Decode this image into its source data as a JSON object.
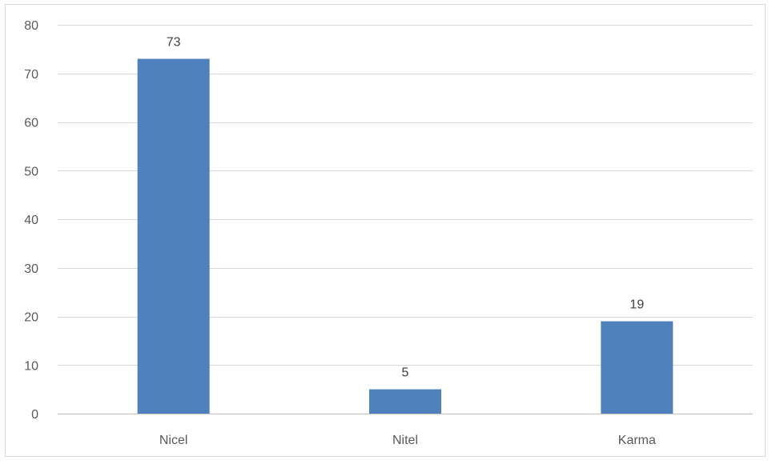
{
  "chart_data": {
    "type": "bar",
    "categories": [
      "Nicel",
      "Nitel",
      "Karma"
    ],
    "values": [
      73,
      5,
      19
    ],
    "data_labels": [
      "73",
      "5",
      "19"
    ],
    "title": "",
    "xlabel": "",
    "ylabel": "",
    "ylim": [
      0,
      80
    ],
    "yticks": [
      0,
      10,
      20,
      30,
      40,
      50,
      60,
      70,
      80
    ],
    "ytick_labels": [
      "0",
      "10",
      "20",
      "30",
      "40",
      "50",
      "60",
      "70",
      "80"
    ],
    "grid": true,
    "legend": "none",
    "colors": {
      "bar": "#4f81bd",
      "grid": "#d9d9d9",
      "axis": "#bfbfbf",
      "tick_text": "#595959",
      "label_text": "#404040"
    }
  }
}
